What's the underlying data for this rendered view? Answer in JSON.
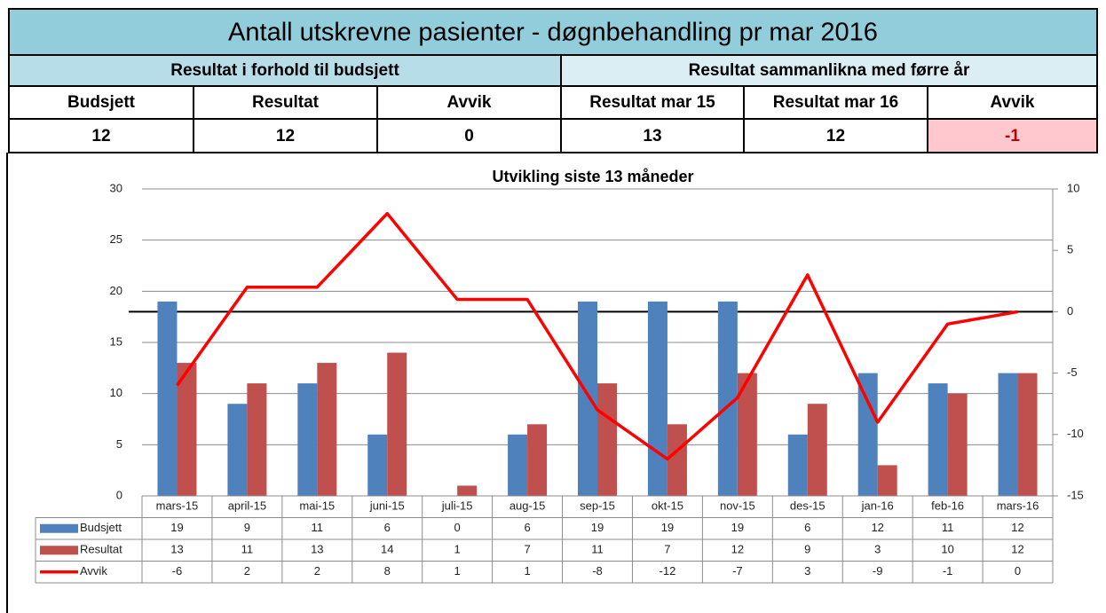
{
  "header": {
    "title": "Antall utskrevne pasienter - døgnbehandling pr mar 2016",
    "groups": [
      "Resultat i forhold til budsjett",
      "Resultat sammanlikna med førre år"
    ],
    "columns": [
      "Budsjett",
      "Resultat",
      "Avvik",
      "Resultat mar 15",
      "Resultat mar 16",
      "Avvik"
    ],
    "values": [
      12,
      12,
      0,
      13,
      12,
      -1
    ]
  },
  "chart_data": {
    "type": "bar",
    "title": "Utvikling siste 13 måneder",
    "categories": [
      "mars-15",
      "april-15",
      "mai-15",
      "juni-15",
      "juli-15",
      "aug-15",
      "sep-15",
      "okt-15",
      "nov-15",
      "des-15",
      "jan-16",
      "feb-16",
      "mars-16"
    ],
    "series": [
      {
        "name": "Budsjett",
        "color": "#4f81bd",
        "values": [
          19,
          9,
          11,
          6,
          0,
          6,
          19,
          19,
          19,
          6,
          12,
          11,
          12
        ]
      },
      {
        "name": "Resultat",
        "color": "#c0504d",
        "values": [
          13,
          11,
          13,
          14,
          1,
          7,
          11,
          7,
          12,
          9,
          3,
          10,
          12
        ]
      },
      {
        "name": "Avvik",
        "color": "#ff0000",
        "type": "line",
        "axis": "y2",
        "values": [
          -6,
          2,
          2,
          8,
          1,
          1,
          -8,
          -12,
          -7,
          3,
          -9,
          -1,
          0
        ]
      }
    ],
    "ylim": [
      0,
      30
    ],
    "yticks": [
      0,
      5,
      10,
      15,
      20,
      25,
      30
    ],
    "y2lim": [
      -15,
      10
    ],
    "y2ticks": [
      -15,
      -10,
      -5,
      0,
      5,
      10
    ],
    "grid": true
  }
}
